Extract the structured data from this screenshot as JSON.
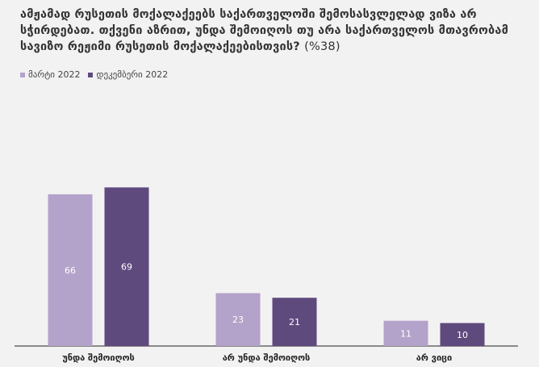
{
  "title": "ამჟამად რუსეთის მოქალაქეებს საქართველოში შემოსასვლელად ვიზა არ სჭირდებათ. თქვენი აზრით, უნდა შემოიღოს თუ არა საქართველოს მთავრობამ სავიზო რეჟიმი რუსეთის მოქალაქეებისთვის?",
  "unit": "(%38)",
  "chart_data": {
    "type": "bar",
    "title": "ამჟამად რუსეთის მოქალაქეებს საქართველოში შემოსასვლელად ვიზა არ სჭირდებათ. თქვენი აზრით, უნდა შემოიღოს თუ არა საქართველოს მთავრობამ სავიზო რეჟიმი რუსეთის მოქალაქეებისთვის?",
    "categories": [
      "უნდა შემოიღოს",
      "არ უნდა შემოიღოს",
      "არ ვიცი"
    ],
    "series": [
      {
        "name": "მარტი 2022",
        "color": "#b3a2c9",
        "values": [
          66,
          23,
          11
        ]
      },
      {
        "name": "დეკემბერი 2022",
        "color": "#5f4a7e",
        "values": [
          69,
          21,
          10
        ]
      }
    ],
    "ylim": [
      0,
      100
    ],
    "grid": false,
    "legend": "top-left"
  }
}
